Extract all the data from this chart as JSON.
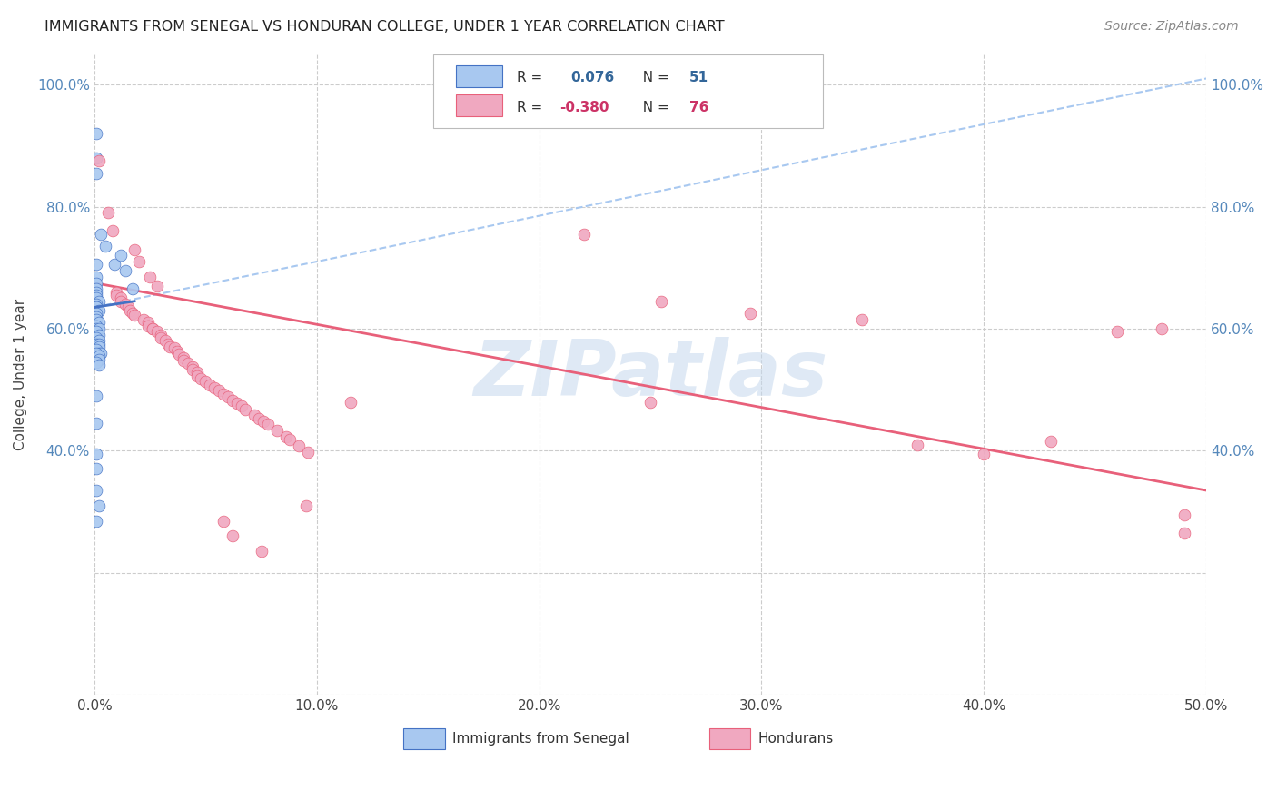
{
  "title": "IMMIGRANTS FROM SENEGAL VS HONDURAN COLLEGE, UNDER 1 YEAR CORRELATION CHART",
  "source": "Source: ZipAtlas.com",
  "ylabel": "College, Under 1 year",
  "xlim": [
    0.0,
    0.5
  ],
  "ylim": [
    0.0,
    1.05
  ],
  "xticks": [
    0.0,
    0.1,
    0.2,
    0.3,
    0.4,
    0.5
  ],
  "yticks": [
    0.0,
    0.2,
    0.4,
    0.6,
    0.8,
    1.0
  ],
  "xticklabels": [
    "0.0%",
    "10.0%",
    "20.0%",
    "30.0%",
    "40.0%",
    "50.0%"
  ],
  "left_yticklabels": [
    "",
    "",
    "40.0%",
    "60.0%",
    "80.0%",
    "100.0%"
  ],
  "right_yticklabels": [
    "",
    "",
    "40.0%",
    "60.0%",
    "80.0%",
    "100.0%"
  ],
  "color_blue": "#A8C8F0",
  "color_pink": "#F0A8C0",
  "line_color_blue": "#4472C4",
  "line_color_pink": "#E8607A",
  "dashed_line_color": "#A8C8F0",
  "watermark_text": "ZIPatlas",
  "background_color": "#FFFFFF",
  "grid_color": "#CCCCCC",
  "blue_solid_line": [
    [
      0.0,
      0.635
    ],
    [
      0.018,
      0.645
    ]
  ],
  "blue_dashed_line": [
    [
      0.0,
      0.635
    ],
    [
      0.5,
      1.01
    ]
  ],
  "pink_solid_line": [
    [
      0.0,
      0.675
    ],
    [
      0.5,
      0.335
    ]
  ],
  "blue_points": [
    [
      0.001,
      0.92
    ],
    [
      0.001,
      0.88
    ],
    [
      0.001,
      0.855
    ],
    [
      0.003,
      0.755
    ],
    [
      0.005,
      0.735
    ],
    [
      0.009,
      0.705
    ],
    [
      0.001,
      0.705
    ],
    [
      0.001,
      0.685
    ],
    [
      0.001,
      0.675
    ],
    [
      0.001,
      0.665
    ],
    [
      0.001,
      0.66
    ],
    [
      0.001,
      0.655
    ],
    [
      0.001,
      0.65
    ],
    [
      0.002,
      0.645
    ],
    [
      0.001,
      0.64
    ],
    [
      0.001,
      0.635
    ],
    [
      0.001,
      0.635
    ],
    [
      0.002,
      0.63
    ],
    [
      0.001,
      0.625
    ],
    [
      0.001,
      0.62
    ],
    [
      0.001,
      0.615
    ],
    [
      0.002,
      0.61
    ],
    [
      0.001,
      0.605
    ],
    [
      0.001,
      0.6
    ],
    [
      0.002,
      0.6
    ],
    [
      0.001,
      0.595
    ],
    [
      0.002,
      0.59
    ],
    [
      0.001,
      0.585
    ],
    [
      0.002,
      0.58
    ],
    [
      0.001,
      0.575
    ],
    [
      0.002,
      0.575
    ],
    [
      0.002,
      0.57
    ],
    [
      0.001,
      0.565
    ],
    [
      0.002,
      0.56
    ],
    [
      0.003,
      0.56
    ],
    [
      0.001,
      0.555
    ],
    [
      0.012,
      0.72
    ],
    [
      0.014,
      0.695
    ],
    [
      0.017,
      0.665
    ],
    [
      0.001,
      0.49
    ],
    [
      0.001,
      0.445
    ],
    [
      0.001,
      0.395
    ],
    [
      0.001,
      0.37
    ],
    [
      0.001,
      0.335
    ],
    [
      0.002,
      0.31
    ],
    [
      0.001,
      0.285
    ],
    [
      0.001,
      0.56
    ],
    [
      0.002,
      0.555
    ],
    [
      0.002,
      0.55
    ],
    [
      0.001,
      0.545
    ],
    [
      0.002,
      0.54
    ]
  ],
  "pink_points": [
    [
      0.002,
      0.875
    ],
    [
      0.006,
      0.79
    ],
    [
      0.008,
      0.76
    ],
    [
      0.018,
      0.73
    ],
    [
      0.02,
      0.71
    ],
    [
      0.025,
      0.685
    ],
    [
      0.028,
      0.67
    ],
    [
      0.01,
      0.66
    ],
    [
      0.01,
      0.655
    ],
    [
      0.012,
      0.65
    ],
    [
      0.012,
      0.645
    ],
    [
      0.014,
      0.64
    ],
    [
      0.015,
      0.635
    ],
    [
      0.016,
      0.63
    ],
    [
      0.017,
      0.625
    ],
    [
      0.018,
      0.622
    ],
    [
      0.022,
      0.615
    ],
    [
      0.024,
      0.61
    ],
    [
      0.024,
      0.605
    ],
    [
      0.026,
      0.6
    ],
    [
      0.026,
      0.6
    ],
    [
      0.028,
      0.595
    ],
    [
      0.03,
      0.59
    ],
    [
      0.03,
      0.585
    ],
    [
      0.032,
      0.58
    ],
    [
      0.033,
      0.575
    ],
    [
      0.034,
      0.57
    ],
    [
      0.036,
      0.568
    ],
    [
      0.037,
      0.562
    ],
    [
      0.038,
      0.558
    ],
    [
      0.04,
      0.553
    ],
    [
      0.04,
      0.548
    ],
    [
      0.042,
      0.543
    ],
    [
      0.044,
      0.538
    ],
    [
      0.044,
      0.533
    ],
    [
      0.046,
      0.528
    ],
    [
      0.046,
      0.523
    ],
    [
      0.048,
      0.518
    ],
    [
      0.05,
      0.513
    ],
    [
      0.052,
      0.508
    ],
    [
      0.054,
      0.503
    ],
    [
      0.056,
      0.498
    ],
    [
      0.058,
      0.493
    ],
    [
      0.06,
      0.488
    ],
    [
      0.062,
      0.483
    ],
    [
      0.064,
      0.478
    ],
    [
      0.066,
      0.473
    ],
    [
      0.068,
      0.468
    ],
    [
      0.072,
      0.458
    ],
    [
      0.074,
      0.453
    ],
    [
      0.076,
      0.448
    ],
    [
      0.078,
      0.443
    ],
    [
      0.082,
      0.433
    ],
    [
      0.086,
      0.423
    ],
    [
      0.088,
      0.418
    ],
    [
      0.092,
      0.408
    ],
    [
      0.096,
      0.398
    ],
    [
      0.115,
      0.48
    ],
    [
      0.25,
      0.48
    ],
    [
      0.22,
      0.755
    ],
    [
      0.255,
      0.645
    ],
    [
      0.295,
      0.625
    ],
    [
      0.345,
      0.615
    ],
    [
      0.37,
      0.41
    ],
    [
      0.4,
      0.395
    ],
    [
      0.43,
      0.415
    ],
    [
      0.46,
      0.595
    ],
    [
      0.48,
      0.6
    ],
    [
      0.49,
      0.265
    ],
    [
      0.058,
      0.285
    ],
    [
      0.062,
      0.26
    ],
    [
      0.075,
      0.235
    ],
    [
      0.095,
      0.31
    ],
    [
      0.49,
      0.295
    ]
  ]
}
